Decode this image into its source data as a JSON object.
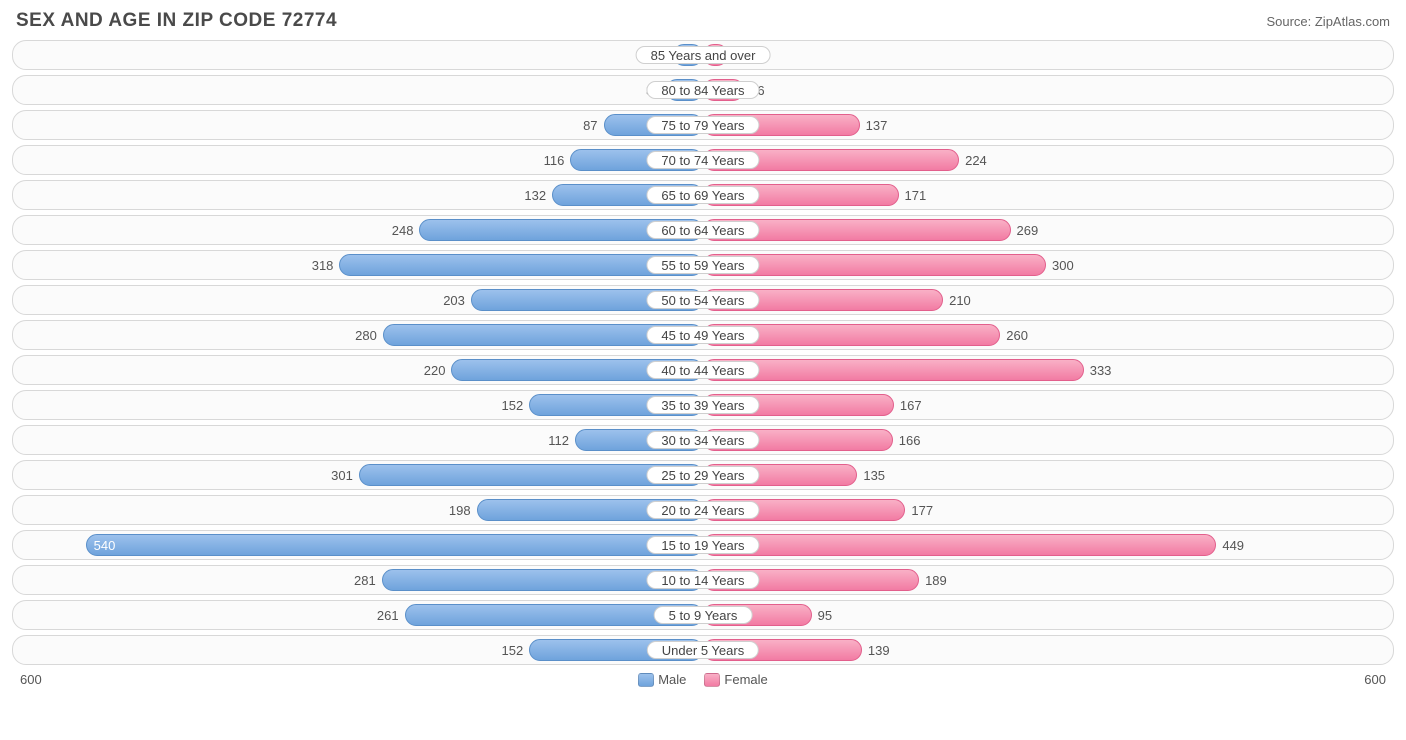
{
  "title": "SEX AND AGE IN ZIP CODE 72774",
  "source": "Source: ZipAtlas.com",
  "chart": {
    "type": "population-pyramid",
    "axis_max": 600,
    "axis_label_left": "600",
    "axis_label_right": "600",
    "male_color": "#7aaade",
    "female_color": "#f186aa",
    "track_border": "#d8d8d8",
    "track_bg": "#fbfbfb",
    "label_bg": "#ffffff",
    "label_border": "#cfcfcf",
    "value_fontsize": 13,
    "label_fontsize": 13,
    "inside_threshold": 500,
    "legend": {
      "male": "Male",
      "female": "Female"
    },
    "rows": [
      {
        "category": "85 Years and over",
        "male": 26,
        "female": 22
      },
      {
        "category": "80 to 84 Years",
        "male": 32,
        "female": 36
      },
      {
        "category": "75 to 79 Years",
        "male": 87,
        "female": 137
      },
      {
        "category": "70 to 74 Years",
        "male": 116,
        "female": 224
      },
      {
        "category": "65 to 69 Years",
        "male": 132,
        "female": 171
      },
      {
        "category": "60 to 64 Years",
        "male": 248,
        "female": 269
      },
      {
        "category": "55 to 59 Years",
        "male": 318,
        "female": 300
      },
      {
        "category": "50 to 54 Years",
        "male": 203,
        "female": 210
      },
      {
        "category": "45 to 49 Years",
        "male": 280,
        "female": 260
      },
      {
        "category": "40 to 44 Years",
        "male": 220,
        "female": 333
      },
      {
        "category": "35 to 39 Years",
        "male": 152,
        "female": 167
      },
      {
        "category": "30 to 34 Years",
        "male": 112,
        "female": 166
      },
      {
        "category": "25 to 29 Years",
        "male": 301,
        "female": 135
      },
      {
        "category": "20 to 24 Years",
        "male": 198,
        "female": 177
      },
      {
        "category": "15 to 19 Years",
        "male": 540,
        "female": 449
      },
      {
        "category": "10 to 14 Years",
        "male": 281,
        "female": 189
      },
      {
        "category": "5 to 9 Years",
        "male": 261,
        "female": 95
      },
      {
        "category": "Under 5 Years",
        "male": 152,
        "female": 139
      }
    ]
  }
}
